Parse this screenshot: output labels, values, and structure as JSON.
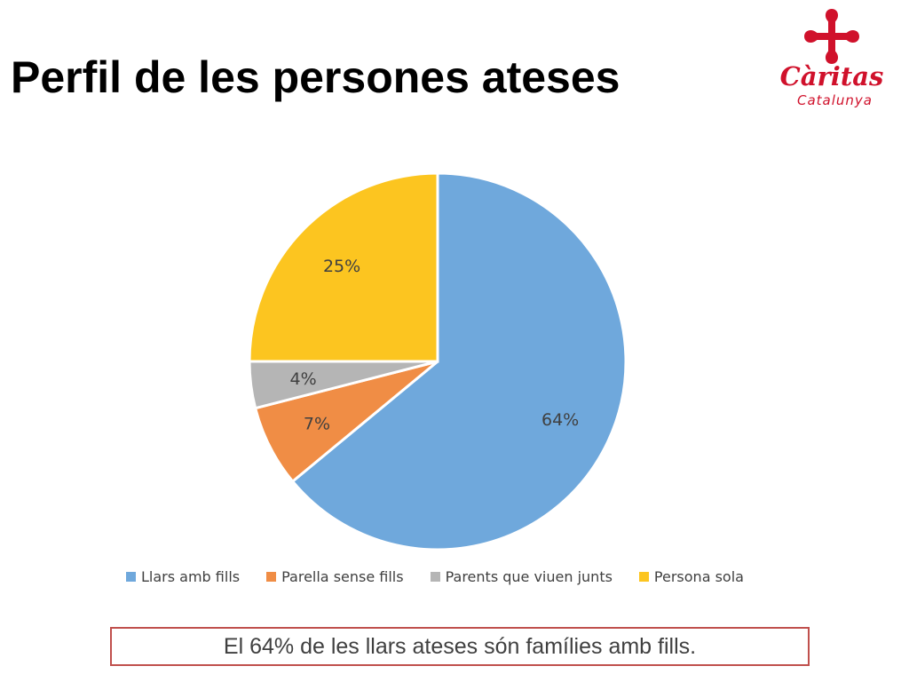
{
  "header": {
    "title": "Perfil de les persones ateses"
  },
  "logo": {
    "name": "Càritas",
    "subtitle": "Catalunya",
    "color": "#d0112b",
    "icon": "caritas-cross-hearts-icon"
  },
  "chart_data": {
    "type": "pie",
    "title": "",
    "categories": [
      "Llars amb fills",
      "Parella sense fills",
      "Parents que viuen junts",
      "Persona sola"
    ],
    "values": [
      64,
      7,
      4,
      25
    ],
    "labels": [
      "64%",
      "7%",
      "4%",
      "25%"
    ],
    "colors": [
      "#6fa8dc",
      "#f08d45",
      "#b5b5b5",
      "#fcc520"
    ],
    "start": "12 o'clock",
    "direction": "clockwise",
    "legend_position": "bottom"
  },
  "callout": {
    "text": "El 64% de les llars ateses són famílies amb fills."
  }
}
